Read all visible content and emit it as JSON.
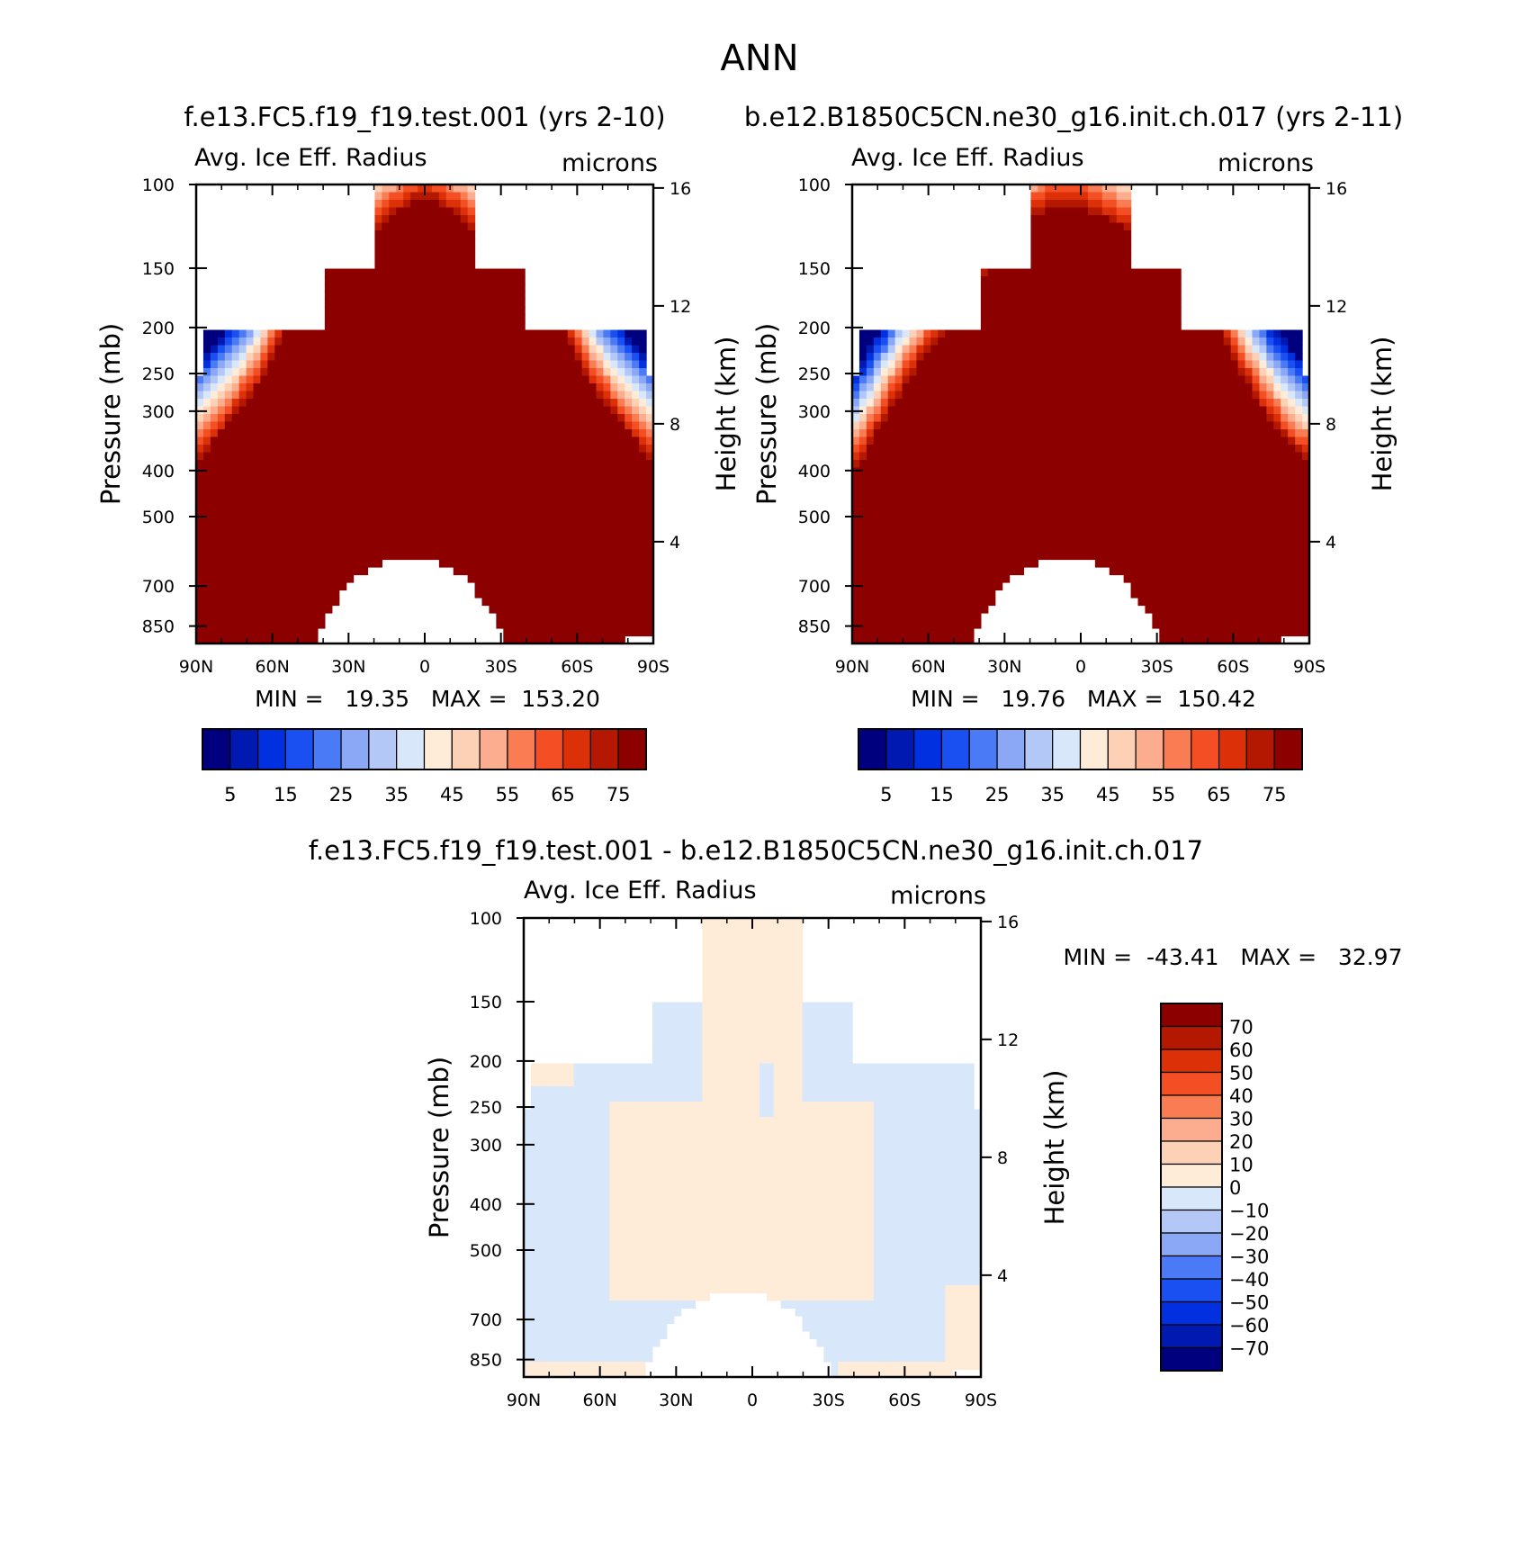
{
  "figure": {
    "title": "ANN",
    "colors": {
      "abs": [
        "#00007f",
        "#0019b0",
        "#0030df",
        "#1a4ff2",
        "#4a7af5",
        "#8aa8f5",
        "#b3c8f7",
        "#d8e8fa",
        "#feebd8",
        "#fdd1b6",
        "#fcad8f",
        "#fa7c52",
        "#f44e24",
        "#dc3008",
        "#b41800",
        "#8c0000"
      ],
      "diff": [
        "#8c0000",
        "#b41800",
        "#dc3008",
        "#f44e24",
        "#fa7c52",
        "#fcad8f",
        "#fdd1b6",
        "#feebd8",
        "#d8e8fa",
        "#b3c8f7",
        "#8aa8f5",
        "#4a7af5",
        "#1a4ff2",
        "#0030df",
        "#0019b0",
        "#00007f"
      ]
    }
  },
  "chart_data": [
    {
      "type": "heatmap",
      "subtitle": "f.e13.FC5.f19_f19.test.001 (yrs 2-10)",
      "title": "Avg. Ice Eff. Radius",
      "units": "microns",
      "xlabel": "",
      "ylabel": "Pressure (mb)",
      "ylabel_right": "Height (km)",
      "x_ticks": [
        "90N",
        "60N",
        "30N",
        "0",
        "30S",
        "60S",
        "90S"
      ],
      "y_ticks": [
        "100",
        "150",
        "200",
        "250",
        "300",
        "400",
        "500",
        "700",
        "850"
      ],
      "y_ticks_right": [
        "16",
        "12",
        "8",
        "4"
      ],
      "stats": "MIN =   19.35   MAX =  153.20",
      "min": 19.35,
      "max": 153.2,
      "colorbar_labels": [
        "5",
        "15",
        "25",
        "35",
        "45",
        "55",
        "65",
        "75"
      ]
    },
    {
      "type": "heatmap",
      "subtitle": "b.e12.B1850C5CN.ne30_g16.init.ch.017 (yrs 2-11)",
      "title": "Avg. Ice Eff. Radius",
      "units": "microns",
      "xlabel": "",
      "ylabel": "Pressure (mb)",
      "ylabel_right": "Height (km)",
      "x_ticks": [
        "90N",
        "60N",
        "30N",
        "0",
        "30S",
        "60S",
        "90S"
      ],
      "y_ticks": [
        "100",
        "150",
        "200",
        "250",
        "300",
        "400",
        "500",
        "700",
        "850"
      ],
      "y_ticks_right": [
        "16",
        "12",
        "8",
        "4"
      ],
      "stats": "MIN =   19.76   MAX =  150.42",
      "min": 19.76,
      "max": 150.42,
      "colorbar_labels": [
        "5",
        "15",
        "25",
        "35",
        "45",
        "55",
        "65",
        "75"
      ]
    },
    {
      "type": "heatmap",
      "subtitle": "f.e13.FC5.f19_f19.test.001 - b.e12.B1850C5CN.ne30_g16.init.ch.017",
      "title": "Avg. Ice Eff. Radius",
      "units": "microns",
      "xlabel": "",
      "ylabel": "Pressure (mb)",
      "ylabel_right": "Height (km)",
      "x_ticks": [
        "90N",
        "60N",
        "30N",
        "0",
        "30S",
        "60S",
        "90S"
      ],
      "y_ticks": [
        "100",
        "150",
        "200",
        "250",
        "300",
        "400",
        "500",
        "700",
        "850"
      ],
      "y_ticks_right": [
        "16",
        "12",
        "8",
        "4"
      ],
      "stats": "MIN =  -43.41   MAX =   32.97",
      "min": -43.41,
      "max": 32.97,
      "colorbar_labels": [
        "70",
        "60",
        "50",
        "40",
        "30",
        "20",
        "10",
        "0",
        "-10",
        "-20",
        "-30",
        "-40",
        "-50",
        "-60",
        "-70"
      ]
    }
  ]
}
